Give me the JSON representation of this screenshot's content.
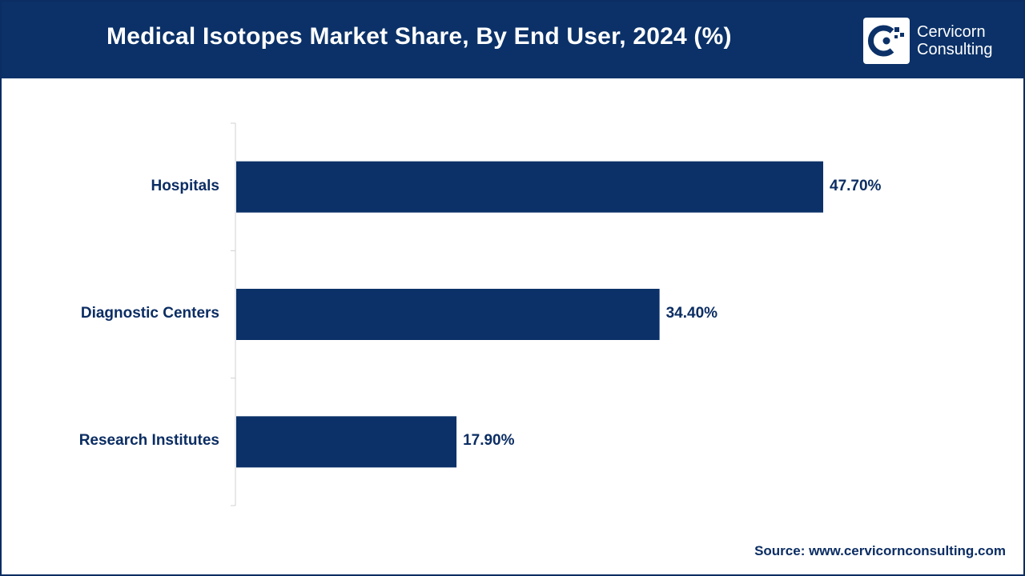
{
  "header": {
    "title": "Medical Isotopes Market Share, By End User, 2024 (%)",
    "logo_line1": "Cervicorn",
    "logo_line2": "Consulting"
  },
  "chart_data": {
    "type": "bar",
    "orientation": "horizontal",
    "title": "Medical Isotopes Market Share, By End User, 2024 (%)",
    "categories": [
      "Hospitals",
      "Diagnostic Centers",
      "Research Institutes"
    ],
    "values": [
      47.7,
      34.4,
      17.9
    ],
    "value_labels": [
      "47.70%",
      "34.40%",
      "17.90%"
    ],
    "xlabel": "",
    "ylabel": "",
    "xlim": [
      0,
      60
    ],
    "grid": false,
    "bar_color": "#0b3168"
  },
  "footer": {
    "source": "Source: www.cervicornconsulting.com"
  },
  "colors": {
    "brand": "#0b3168",
    "text": "#0b2d63"
  }
}
